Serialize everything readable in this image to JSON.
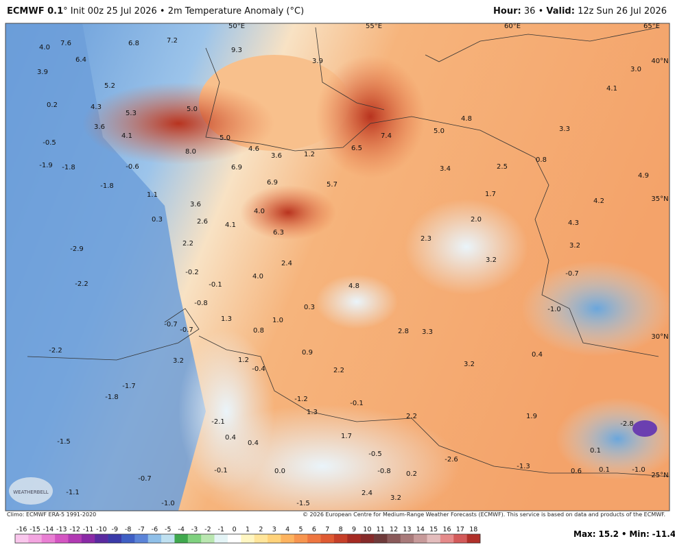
{
  "header": {
    "model": "ECMWF 0.1",
    "init": "° Init 00z 25 Jul 2026",
    "separator": "•",
    "field": "2m Temperature Anomaly (°C)",
    "hour_label": "Hour:",
    "hour": 36,
    "valid_label": "Valid:",
    "valid": "12z Sun 26 Jul 2026"
  },
  "map": {
    "axis_labels": [
      "50°E",
      "55°E",
      "60°E",
      "65°E",
      "40°N",
      "35°N",
      "30°N",
      "25°N"
    ],
    "labels": [
      "4.0",
      "7.6",
      "6.8",
      "7.2",
      "9.3",
      "3.9",
      "6.4",
      "5.2",
      "3.9",
      "4.1",
      "3.0",
      "0.2",
      "4.3",
      "5.3",
      "5.0",
      "3.6",
      "4.1",
      "5.0",
      "4.8",
      "5.0",
      "7.4",
      "3.3",
      "-0.5",
      "8.0",
      "4.6",
      "3.6",
      "1.2",
      "6.5",
      "-1.9",
      "-1.8",
      "-0.6",
      "6.9",
      "3.4",
      "2.5",
      "0.8",
      "6.9",
      "5.7",
      "-1.8",
      "1.7",
      "4.9",
      "1.1",
      "3.6",
      "4.2",
      "4.0",
      "0.3",
      "2.6",
      "4.1",
      "2.0",
      "4.3",
      "6.3",
      "2.3",
      "-2.9",
      "2.2",
      "3.2",
      "2.4",
      "3.2",
      "-0.2",
      "4.0",
      "-0.7",
      "-2.2",
      "-0.1",
      "4.8",
      "-0.8",
      "0.3",
      "-1.0",
      "1.3",
      "1.0",
      "-0.7",
      "-0.7",
      "0.8",
      "2.8",
      "3.3",
      "-2.2",
      "0.9",
      "0.4",
      "3.2",
      "1.2",
      "-0.4",
      "3.2",
      "2.2",
      "-1.7",
      "-1.8",
      "-1.2",
      "-0.1",
      "1.3",
      "2.2",
      "1.9",
      "-2.1",
      "-2.8",
      "-1.5",
      "0.4",
      "0.4",
      "1.7",
      "-0.5",
      "0.1",
      "-2.6",
      "-0.1",
      "0.0",
      "-0.8",
      "-1.3",
      "0.6",
      "0.1",
      "-1.0",
      "0.2",
      "-0.7",
      "-1.1",
      "2.4",
      "3.2",
      "-1.0",
      "-1.5"
    ],
    "logo": "WEATHERBELL"
  },
  "footer": {
    "climo": "Climo: ECMWF ERA-5 1991-2020",
    "copyright": "© 2026 European Centre for Medium-Range Weather Forecasts (ECMWF). This service is based on data and products of the ECMWF."
  },
  "colorbar": {
    "ticks": [
      -16,
      -15,
      -14,
      -13,
      -12,
      -11,
      -10,
      -9,
      -8,
      -7,
      -6,
      -5,
      -4,
      -3,
      -2,
      -1,
      0,
      1,
      2,
      3,
      4,
      5,
      6,
      7,
      8,
      9,
      10,
      11,
      12,
      13,
      14,
      15,
      16,
      17,
      18
    ],
    "colors": [
      "#f9c6ec",
      "#f3a5e0",
      "#e97fd3",
      "#d455c2",
      "#b13ab3",
      "#8a2aa6",
      "#5a2aa0",
      "#3a3aa8",
      "#3f5fc4",
      "#5b84d8",
      "#8fbfe8",
      "#bfe0f0",
      "#3fa84e",
      "#7fd17f",
      "#b9e6b0",
      "#e4f4f6",
      "#ffffff",
      "#fff6c2",
      "#ffe59a",
      "#ffd27a",
      "#fdb35f",
      "#f7954f",
      "#ee7640",
      "#df5a33",
      "#c63f29",
      "#a52a22",
      "#852a2a",
      "#6e3a3a",
      "#8a5a5a",
      "#a87a7a",
      "#c79a9a",
      "#e3bcbc",
      "#e58a8a",
      "#d35a5a",
      "#b0302a"
    ]
  },
  "stats": {
    "max_label": "Max:",
    "max": 15.2,
    "min_label": "Min:",
    "min": -11.4
  }
}
